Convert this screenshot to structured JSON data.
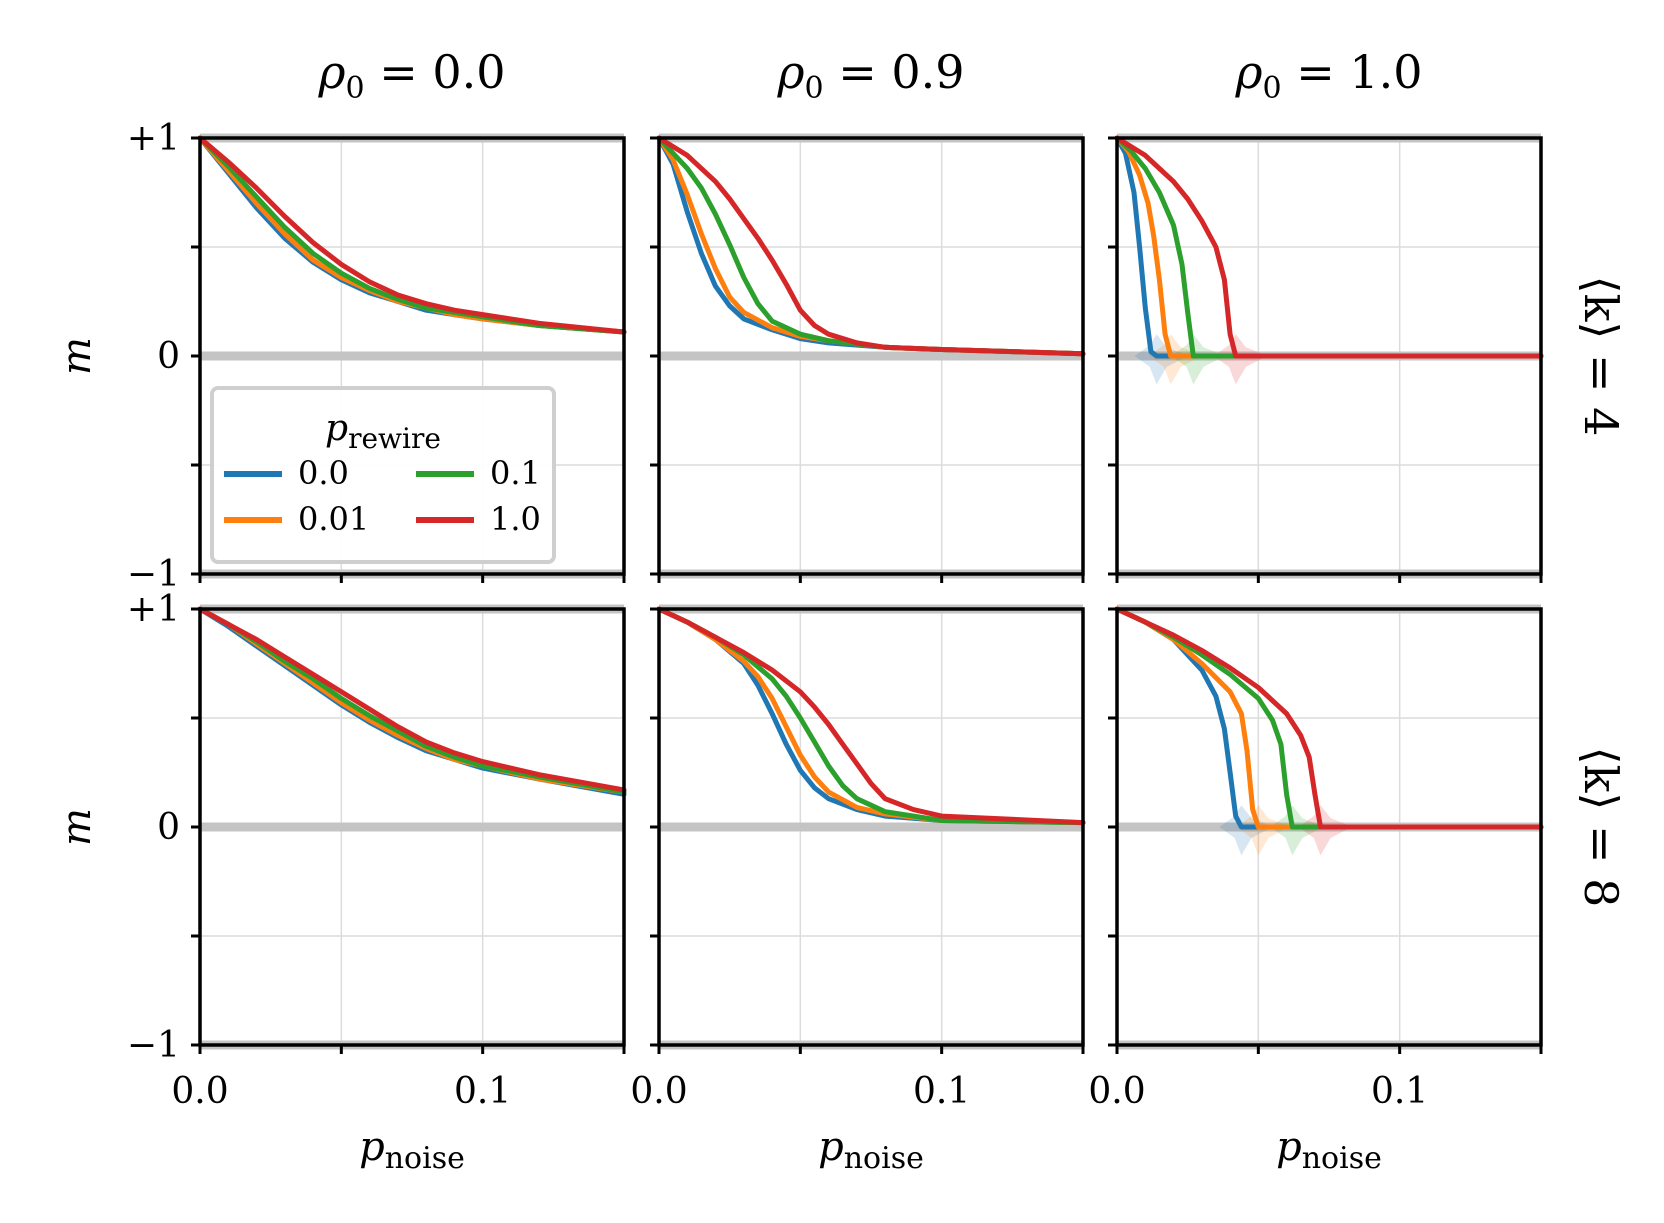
{
  "figure": {
    "columns": [
      {
        "label": "ρ",
        "sub": "0",
        "value": "= 0.0"
      },
      {
        "label": "ρ",
        "sub": "0",
        "value": "= 0.9"
      },
      {
        "label": "ρ",
        "sub": "0",
        "value": "= 1.0"
      }
    ],
    "rows": [
      {
        "label": "⟨k⟩ = 4"
      },
      {
        "label": "⟨k⟩ = 8"
      }
    ],
    "ylabel": "m",
    "xlabel_main": "p",
    "xlabel_sub": "noise",
    "yticks": [
      "+1",
      "0",
      "−1"
    ],
    "xticks": [
      "0.0",
      "0.1"
    ],
    "legend": {
      "title_main": "p",
      "title_sub": "rewire",
      "entries": [
        {
          "label": "0.0",
          "color": "#1f77b4"
        },
        {
          "label": "0.01",
          "color": "#ff7f0e"
        },
        {
          "label": "0.1",
          "color": "#2ca02c"
        },
        {
          "label": "1.0",
          "color": "#d62728"
        }
      ]
    }
  },
  "chart_data": {
    "type": "line",
    "x_range": [
      0.0,
      0.15
    ],
    "y_range": [
      -1,
      1
    ],
    "grid": true,
    "legend_location": "lower-left of top-left panel",
    "series_names": [
      "0.0",
      "0.01",
      "0.1",
      "1.0"
    ],
    "colors": [
      "#1f77b4",
      "#ff7f0e",
      "#2ca02c",
      "#d62728"
    ],
    "panels": [
      {
        "row": 0,
        "col": 0,
        "series": [
          {
            "name": "0.0",
            "x": [
              0,
              0.01,
              0.02,
              0.03,
              0.04,
              0.05,
              0.06,
              0.07,
              0.08,
              0.09,
              0.1,
              0.12,
              0.15
            ],
            "y": [
              1.0,
              0.84,
              0.68,
              0.54,
              0.43,
              0.35,
              0.29,
              0.25,
              0.21,
              0.19,
              0.17,
              0.14,
              0.11
            ]
          },
          {
            "name": "0.01",
            "x": [
              0,
              0.01,
              0.02,
              0.03,
              0.04,
              0.05,
              0.06,
              0.07,
              0.08,
              0.09,
              0.1,
              0.12,
              0.15
            ],
            "y": [
              1.0,
              0.85,
              0.7,
              0.56,
              0.44,
              0.36,
              0.3,
              0.25,
              0.22,
              0.19,
              0.17,
              0.14,
              0.11
            ]
          },
          {
            "name": "0.1",
            "x": [
              0,
              0.01,
              0.02,
              0.03,
              0.04,
              0.05,
              0.06,
              0.07,
              0.08,
              0.09,
              0.1,
              0.12,
              0.15
            ],
            "y": [
              1.0,
              0.87,
              0.73,
              0.59,
              0.47,
              0.38,
              0.31,
              0.26,
              0.22,
              0.2,
              0.18,
              0.14,
              0.11
            ]
          },
          {
            "name": "1.0",
            "x": [
              0,
              0.01,
              0.02,
              0.03,
              0.04,
              0.05,
              0.06,
              0.07,
              0.08,
              0.09,
              0.1,
              0.12,
              0.15
            ],
            "y": [
              1.0,
              0.89,
              0.77,
              0.64,
              0.52,
              0.42,
              0.34,
              0.28,
              0.24,
              0.21,
              0.19,
              0.15,
              0.11
            ]
          }
        ]
      },
      {
        "row": 0,
        "col": 1,
        "series": [
          {
            "name": "0.0",
            "x": [
              0,
              0.005,
              0.01,
              0.015,
              0.02,
              0.025,
              0.03,
              0.04,
              0.05,
              0.06,
              0.08,
              0.1,
              0.15
            ],
            "y": [
              1.0,
              0.88,
              0.66,
              0.47,
              0.32,
              0.23,
              0.17,
              0.12,
              0.08,
              0.06,
              0.04,
              0.03,
              0.01
            ]
          },
          {
            "name": "0.01",
            "x": [
              0,
              0.005,
              0.01,
              0.015,
              0.02,
              0.025,
              0.03,
              0.04,
              0.05,
              0.06,
              0.08,
              0.1,
              0.15
            ],
            "y": [
              1.0,
              0.9,
              0.74,
              0.56,
              0.4,
              0.27,
              0.2,
              0.13,
              0.09,
              0.07,
              0.04,
              0.03,
              0.01
            ]
          },
          {
            "name": "0.1",
            "x": [
              0,
              0.005,
              0.01,
              0.015,
              0.02,
              0.025,
              0.03,
              0.035,
              0.04,
              0.05,
              0.06,
              0.08,
              0.1,
              0.15
            ],
            "y": [
              1.0,
              0.93,
              0.86,
              0.77,
              0.65,
              0.51,
              0.36,
              0.24,
              0.16,
              0.1,
              0.07,
              0.04,
              0.03,
              0.01
            ]
          },
          {
            "name": "1.0",
            "x": [
              0,
              0.01,
              0.02,
              0.025,
              0.03,
              0.035,
              0.04,
              0.045,
              0.05,
              0.055,
              0.06,
              0.07,
              0.08,
              0.1,
              0.15
            ],
            "y": [
              1.0,
              0.92,
              0.8,
              0.72,
              0.63,
              0.54,
              0.44,
              0.33,
              0.21,
              0.14,
              0.1,
              0.06,
              0.04,
              0.03,
              0.01
            ]
          }
        ]
      },
      {
        "row": 0,
        "col": 2,
        "series": [
          {
            "name": "0.0",
            "x": [
              0,
              0.003,
              0.006,
              0.008,
              0.01,
              0.012,
              0.014,
              0.15
            ],
            "y": [
              1.0,
              0.93,
              0.75,
              0.5,
              0.22,
              0.02,
              0.0,
              0.0
            ]
          },
          {
            "name": "0.01",
            "x": [
              0,
              0.004,
              0.008,
              0.011,
              0.013,
              0.015,
              0.017,
              0.019,
              0.15
            ],
            "y": [
              1.0,
              0.94,
              0.83,
              0.7,
              0.55,
              0.35,
              0.1,
              0.0,
              0.0
            ]
          },
          {
            "name": "0.1",
            "x": [
              0,
              0.005,
              0.01,
              0.015,
              0.02,
              0.023,
              0.025,
              0.027,
              0.15
            ],
            "y": [
              1.0,
              0.94,
              0.86,
              0.75,
              0.6,
              0.42,
              0.2,
              0.0,
              0.0
            ]
          },
          {
            "name": "1.0",
            "x": [
              0,
              0.01,
              0.015,
              0.02,
              0.025,
              0.03,
              0.035,
              0.038,
              0.04,
              0.042,
              0.15
            ],
            "y": [
              1.0,
              0.92,
              0.86,
              0.8,
              0.72,
              0.62,
              0.5,
              0.35,
              0.1,
              0.0,
              0.0
            ]
          }
        ]
      },
      {
        "row": 1,
        "col": 0,
        "series": [
          {
            "name": "0.0",
            "x": [
              0,
              0.01,
              0.02,
              0.03,
              0.04,
              0.05,
              0.06,
              0.07,
              0.08,
              0.09,
              0.1,
              0.12,
              0.15
            ],
            "y": [
              1.0,
              0.92,
              0.83,
              0.74,
              0.65,
              0.56,
              0.48,
              0.41,
              0.35,
              0.31,
              0.27,
              0.22,
              0.15
            ]
          },
          {
            "name": "0.01",
            "x": [
              0,
              0.01,
              0.02,
              0.03,
              0.04,
              0.05,
              0.06,
              0.07,
              0.08,
              0.09,
              0.1,
              0.12,
              0.15
            ],
            "y": [
              1.0,
              0.93,
              0.84,
              0.75,
              0.66,
              0.57,
              0.49,
              0.42,
              0.36,
              0.31,
              0.28,
              0.22,
              0.16
            ]
          },
          {
            "name": "0.1",
            "x": [
              0,
              0.01,
              0.02,
              0.03,
              0.04,
              0.05,
              0.06,
              0.07,
              0.08,
              0.09,
              0.1,
              0.12,
              0.15
            ],
            "y": [
              1.0,
              0.93,
              0.85,
              0.76,
              0.68,
              0.59,
              0.51,
              0.44,
              0.37,
              0.32,
              0.28,
              0.23,
              0.16
            ]
          },
          {
            "name": "1.0",
            "x": [
              0,
              0.01,
              0.02,
              0.03,
              0.04,
              0.05,
              0.06,
              0.07,
              0.08,
              0.09,
              0.1,
              0.12,
              0.15
            ],
            "y": [
              1.0,
              0.93,
              0.86,
              0.78,
              0.7,
              0.62,
              0.54,
              0.46,
              0.39,
              0.34,
              0.3,
              0.24,
              0.17
            ]
          }
        ]
      },
      {
        "row": 1,
        "col": 1,
        "series": [
          {
            "name": "0.0",
            "x": [
              0,
              0.01,
              0.02,
              0.03,
              0.035,
              0.04,
              0.045,
              0.05,
              0.055,
              0.06,
              0.07,
              0.08,
              0.1,
              0.15
            ],
            "y": [
              1.0,
              0.94,
              0.86,
              0.75,
              0.65,
              0.52,
              0.38,
              0.26,
              0.18,
              0.13,
              0.08,
              0.05,
              0.03,
              0.02
            ]
          },
          {
            "name": "0.01",
            "x": [
              0,
              0.01,
              0.02,
              0.03,
              0.035,
              0.04,
              0.045,
              0.05,
              0.055,
              0.06,
              0.07,
              0.08,
              0.1,
              0.15
            ],
            "y": [
              1.0,
              0.94,
              0.86,
              0.76,
              0.69,
              0.59,
              0.46,
              0.33,
              0.23,
              0.16,
              0.09,
              0.06,
              0.03,
              0.02
            ]
          },
          {
            "name": "0.1",
            "x": [
              0,
              0.01,
              0.02,
              0.03,
              0.04,
              0.045,
              0.05,
              0.055,
              0.06,
              0.065,
              0.07,
              0.08,
              0.1,
              0.15
            ],
            "y": [
              1.0,
              0.94,
              0.87,
              0.79,
              0.68,
              0.6,
              0.5,
              0.39,
              0.28,
              0.19,
              0.13,
              0.07,
              0.03,
              0.02
            ]
          },
          {
            "name": "1.0",
            "x": [
              0,
              0.01,
              0.02,
              0.03,
              0.04,
              0.05,
              0.055,
              0.06,
              0.065,
              0.07,
              0.075,
              0.08,
              0.09,
              0.1,
              0.15
            ],
            "y": [
              1.0,
              0.94,
              0.87,
              0.8,
              0.72,
              0.62,
              0.55,
              0.47,
              0.38,
              0.29,
              0.2,
              0.13,
              0.08,
              0.05,
              0.02
            ]
          }
        ]
      },
      {
        "row": 1,
        "col": 2,
        "series": [
          {
            "name": "0.0",
            "x": [
              0,
              0.01,
              0.02,
              0.03,
              0.035,
              0.038,
              0.04,
              0.042,
              0.044,
              0.15
            ],
            "y": [
              1.0,
              0.94,
              0.86,
              0.72,
              0.6,
              0.45,
              0.25,
              0.05,
              0.0,
              0.0
            ]
          },
          {
            "name": "0.01",
            "x": [
              0,
              0.01,
              0.02,
              0.03,
              0.04,
              0.044,
              0.046,
              0.048,
              0.05,
              0.15
            ],
            "y": [
              1.0,
              0.94,
              0.86,
              0.75,
              0.62,
              0.52,
              0.35,
              0.08,
              0.0,
              0.0
            ]
          },
          {
            "name": "0.1",
            "x": [
              0,
              0.01,
              0.02,
              0.03,
              0.04,
              0.05,
              0.055,
              0.058,
              0.06,
              0.062,
              0.15
            ],
            "y": [
              1.0,
              0.94,
              0.87,
              0.79,
              0.7,
              0.59,
              0.49,
              0.38,
              0.15,
              0.0,
              0.0
            ]
          },
          {
            "name": "1.0",
            "x": [
              0,
              0.01,
              0.02,
              0.03,
              0.04,
              0.05,
              0.06,
              0.065,
              0.068,
              0.07,
              0.072,
              0.15
            ],
            "y": [
              1.0,
              0.94,
              0.88,
              0.81,
              0.73,
              0.64,
              0.52,
              0.42,
              0.32,
              0.15,
              0.0,
              0.0
            ]
          }
        ]
      }
    ]
  }
}
